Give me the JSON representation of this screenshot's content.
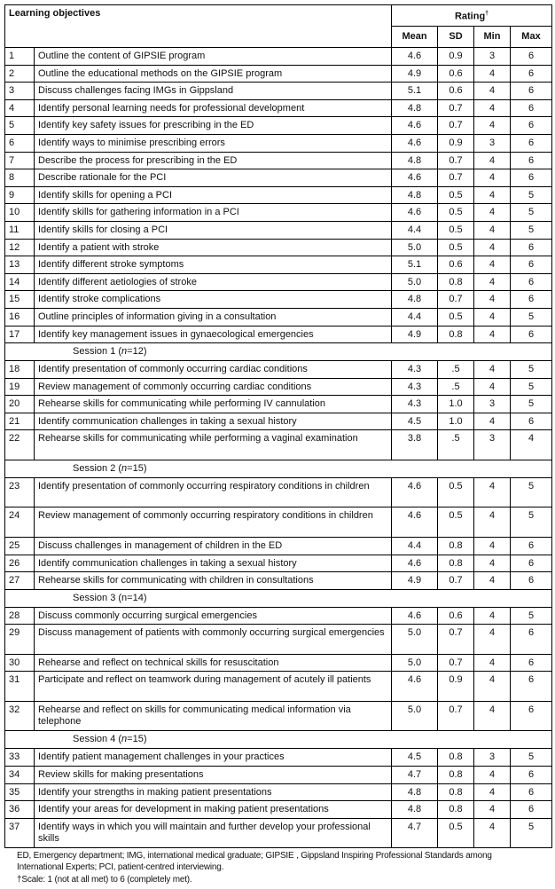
{
  "header": {
    "objectives_label": "Learning objectives",
    "rating_label": "Rating",
    "rating_mark": "†",
    "columns": [
      "Mean",
      "SD",
      "Min",
      "Max"
    ]
  },
  "rows": [
    {
      "num": "1",
      "text": "Outline the content of GIPSIE  program",
      "mean": "4.6",
      "sd": "0.9",
      "min": "3",
      "max": "6"
    },
    {
      "num": "2",
      "text": "Outline the educational methods on the GIPSIE  program",
      "mean": "4.9",
      "sd": "0.6",
      "min": "4",
      "max": "6"
    },
    {
      "num": "3",
      "text": "Discuss challenges facing IMGs in Gippsland",
      "mean": "5.1",
      "sd": "0.6",
      "min": "4",
      "max": "6"
    },
    {
      "num": "4",
      "text": "Identify personal learning needs for professional development",
      "mean": "4.8",
      "sd": "0.7",
      "min": "4",
      "max": "6"
    },
    {
      "num": "5",
      "text": "Identify key safety issues for prescribing in the ED",
      "mean": "4.6",
      "sd": "0.7",
      "min": "4",
      "max": "6"
    },
    {
      "num": "6",
      "text": "Identify ways to minimise prescribing errors",
      "mean": "4.6",
      "sd": "0.9",
      "min": "3",
      "max": "6"
    },
    {
      "num": "7",
      "text": "Describe the process for prescribing in the ED",
      "mean": "4.8",
      "sd": "0.7",
      "min": "4",
      "max": "6"
    },
    {
      "num": "8",
      "text": "Describe rationale for the PCI",
      "mean": "4.6",
      "sd": "0.7",
      "min": "4",
      "max": "6"
    },
    {
      "num": "9",
      "text": "Identify skills for opening a PCI",
      "mean": "4.8",
      "sd": "0.5",
      "min": "4",
      "max": "5"
    },
    {
      "num": "10",
      "text": "Identify skills for gathering information in a PCI",
      "mean": "4.6",
      "sd": "0.5",
      "min": "4",
      "max": "5"
    },
    {
      "num": "11",
      "text": "Identify skills for closing a PCI",
      "mean": "4.4",
      "sd": "0.5",
      "min": "4",
      "max": "5"
    },
    {
      "num": "12",
      "text": "Identify a patient with stroke",
      "mean": "5.0",
      "sd": "0.5",
      "min": "4",
      "max": "6"
    },
    {
      "num": "13",
      "text": "Identify different stroke symptoms",
      "mean": "5.1",
      "sd": "0.6",
      "min": "4",
      "max": "6"
    },
    {
      "num": "14",
      "text": "Identify different aetiologies of stroke",
      "mean": "5.0",
      "sd": "0.8",
      "min": "4",
      "max": "6"
    },
    {
      "num": "15",
      "text": "Identify stroke complications",
      "mean": "4.8",
      "sd": "0.7",
      "min": "4",
      "max": "6"
    },
    {
      "num": "16",
      "text": "Outline principles of information giving in a consultation",
      "mean": "4.4",
      "sd": "0.5",
      "min": "4",
      "max": "5"
    },
    {
      "num": "17",
      "text": "Identify key management issues in gynaecological emergencies",
      "mean": "4.9",
      "sd": "0.8",
      "min": "4",
      "max": "6"
    },
    {
      "session": "Session 1",
      "n_symbol": "n",
      "n": "12",
      "italic": true
    },
    {
      "num": "18",
      "text": "Identify presentation of commonly occurring cardiac conditions",
      "mean": "4.3",
      "sd": ".5",
      "min": "4",
      "max": "5"
    },
    {
      "num": "19",
      "text": "Review management of commonly occurring cardiac conditions",
      "mean": "4.3",
      "sd": ".5",
      "min": "4",
      "max": "5"
    },
    {
      "num": "20",
      "text": "Rehearse skills for communicating while performing IV cannulation",
      "mean": "4.3",
      "sd": "1.0",
      "min": "3",
      "max": "5"
    },
    {
      "num": "21",
      "text": "Identify communication challenges in taking a sexual history",
      "mean": "4.5",
      "sd": "1.0",
      "min": "4",
      "max": "6"
    },
    {
      "num": "22",
      "text": "Rehearse skills for communicating while performing a vaginal examination",
      "mean": "3.8",
      "sd": ".5",
      "min": "3",
      "max": "4",
      "double": true
    },
    {
      "session": "Session 2",
      "n_symbol": "n",
      "n": "15",
      "italic": true
    },
    {
      "num": "23",
      "text": "Identify presentation of commonly occurring respiratory conditions in children",
      "mean": "4.6",
      "sd": "0.5",
      "min": "4",
      "max": "5",
      "double": true
    },
    {
      "num": "24",
      "text": "Review management of commonly occurring respiratory conditions in children",
      "mean": "4.6",
      "sd": "0.5",
      "min": "4",
      "max": "5",
      "double": true
    },
    {
      "num": "25",
      "text": "Discuss challenges in management of children in the ED",
      "mean": "4.4",
      "sd": "0.8",
      "min": "4",
      "max": "6"
    },
    {
      "num": "26",
      "text": "Identify communication challenges in taking a sexual history",
      "mean": "4.6",
      "sd": "0.8",
      "min": "4",
      "max": "6"
    },
    {
      "num": "27",
      "text": "Rehearse skills for communicating with children in consultations",
      "mean": "4.9",
      "sd": "0.7",
      "min": "4",
      "max": "6"
    },
    {
      "session": "Session 3",
      "n_symbol": "n",
      "n": "14",
      "italic": false
    },
    {
      "num": "28",
      "text": "Discuss commonly occurring surgical emergencies",
      "mean": "4.6",
      "sd": "0.6",
      "min": "4",
      "max": "5"
    },
    {
      "num": "29",
      "text": "Discuss management of patients with commonly occurring surgical emergencies",
      "mean": "5.0",
      "sd": "0.7",
      "min": "4",
      "max": "6",
      "double": true
    },
    {
      "num": "30",
      "text": "Rehearse and reflect on technical skills for resuscitation",
      "mean": "5.0",
      "sd": "0.7",
      "min": "4",
      "max": "6"
    },
    {
      "num": "31",
      "text": "Participate and reflect on teamwork during management of acutely ill patients",
      "mean": "4.6",
      "sd": "0.9",
      "min": "4",
      "max": "6",
      "double": true
    },
    {
      "num": "32",
      "text": "Rehearse and reflect on skills for communicating medical information via telephone",
      "mean": "5.0",
      "sd": "0.7",
      "min": "4",
      "max": "6",
      "double": true
    },
    {
      "session": "Session 4",
      "n_symbol": "n",
      "n": "15",
      "italic": true
    },
    {
      "num": "33",
      "text": "Identify patient management challenges in your practices",
      "mean": "4.5",
      "sd": "0.8",
      "min": "3",
      "max": "5"
    },
    {
      "num": "34",
      "text": "Review skills for making presentations",
      "mean": "4.7",
      "sd": "0.8",
      "min": "4",
      "max": "6"
    },
    {
      "num": "35",
      "text": "Identify your strengths in making patient presentations",
      "mean": "4.8",
      "sd": "0.8",
      "min": "4",
      "max": "6"
    },
    {
      "num": "36",
      "text": "Identify your areas for development in making patient presentations",
      "mean": "4.8",
      "sd": "0.8",
      "min": "4",
      "max": "6"
    },
    {
      "num": "37",
      "text": "Identify ways in which you will maintain and further develop your professional skills",
      "mean": "4.7",
      "sd": "0.5",
      "min": "4",
      "max": "5",
      "double": true
    }
  ],
  "footnotes": {
    "abbreviations": "ED, Emergency department; IMG, international medical graduate;  GIPSIE , Gippsland Inspiring Professional Standards among International Experts; PCI, patient-centred interviewing.",
    "scale": "†Scale: 1 (not at all met) to 6 (completely met)."
  }
}
